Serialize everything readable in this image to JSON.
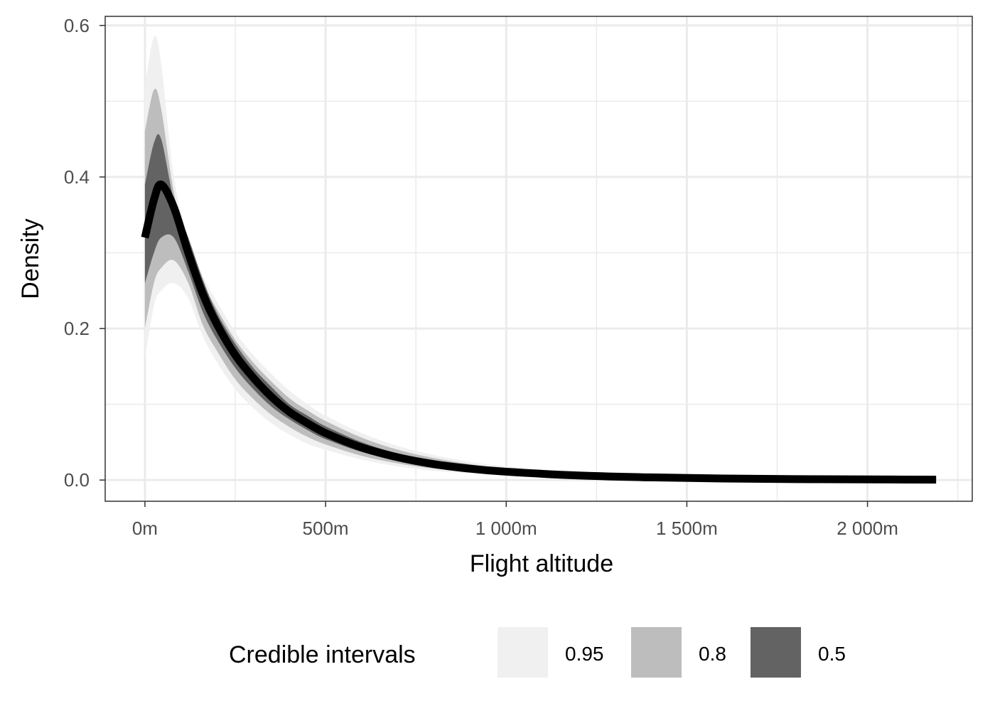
{
  "chart_data": {
    "type": "area",
    "xlabel": "Flight altitude",
    "ylabel": "Density",
    "xlim": [
      -110,
      2290
    ],
    "ylim": [
      -0.028,
      0.612
    ],
    "x_ticks": [
      0,
      500,
      1000,
      1500,
      2000
    ],
    "x_tick_labels": [
      "0m",
      "500m",
      "1 000m",
      "1 500m",
      "2 000m"
    ],
    "x_minor_ticks": [
      250,
      750,
      1250,
      1750,
      2250
    ],
    "y_ticks": [
      0.0,
      0.2,
      0.4,
      0.6
    ],
    "y_tick_labels": [
      "0.0",
      "0.2",
      "0.4",
      "0.6"
    ],
    "y_minor_ticks": [
      0.1,
      0.3,
      0.5
    ],
    "grid": true,
    "legend": {
      "title": "Credible intervals",
      "position": "bottom",
      "entries": [
        {
          "label": "0.95",
          "color": "#f0f0f0"
        },
        {
          "label": "0.8",
          "color": "#bdbdbd"
        },
        {
          "label": "0.5",
          "color": "#636363"
        }
      ]
    },
    "x": [
      0,
      25,
      45,
      80,
      120,
      160,
      200,
      250,
      300,
      350,
      400,
      450,
      500,
      600,
      700,
      800,
      900,
      1000,
      1200,
      1400,
      1600,
      1800,
      2000,
      2190
    ],
    "median": [
      0.32,
      0.37,
      0.39,
      0.36,
      0.3,
      0.246,
      0.205,
      0.165,
      0.135,
      0.11,
      0.09,
      0.075,
      0.062,
      0.043,
      0.03,
      0.021,
      0.015,
      0.011,
      0.006,
      0.0035,
      0.002,
      0.0012,
      0.0008,
      0.0005
    ],
    "intervals": [
      {
        "level": "0.95",
        "color": "#f0f0f0",
        "lower": [
          0.16,
          0.23,
          0.25,
          0.26,
          0.24,
          0.19,
          0.155,
          0.12,
          0.095,
          0.075,
          0.06,
          0.048,
          0.04,
          0.027,
          0.018,
          0.012,
          0.009,
          0.006,
          0.003,
          0.0015,
          0.0008,
          0.0004,
          0.0002,
          0.0001
        ],
        "upper": [
          0.52,
          0.585,
          0.55,
          0.4,
          0.32,
          0.27,
          0.235,
          0.195,
          0.165,
          0.14,
          0.118,
          0.1,
          0.085,
          0.062,
          0.045,
          0.033,
          0.024,
          0.018,
          0.01,
          0.0065,
          0.004,
          0.0025,
          0.0015,
          0.001
        ]
      },
      {
        "level": "0.8",
        "color": "#bdbdbd",
        "lower": [
          0.2,
          0.26,
          0.28,
          0.29,
          0.26,
          0.205,
          0.17,
          0.133,
          0.107,
          0.086,
          0.07,
          0.057,
          0.047,
          0.032,
          0.022,
          0.015,
          0.011,
          0.008,
          0.004,
          0.0022,
          0.0012,
          0.0006,
          0.0003,
          0.0002
        ],
        "upper": [
          0.46,
          0.515,
          0.49,
          0.38,
          0.31,
          0.26,
          0.225,
          0.185,
          0.155,
          0.13,
          0.108,
          0.092,
          0.078,
          0.056,
          0.04,
          0.029,
          0.021,
          0.015,
          0.0085,
          0.0055,
          0.0033,
          0.002,
          0.0012,
          0.0008
        ]
      },
      {
        "level": "0.5",
        "color": "#636363",
        "lower": [
          0.26,
          0.3,
          0.32,
          0.32,
          0.275,
          0.222,
          0.185,
          0.148,
          0.12,
          0.097,
          0.08,
          0.066,
          0.054,
          0.037,
          0.026,
          0.018,
          0.013,
          0.0095,
          0.005,
          0.0028,
          0.0016,
          0.0009,
          0.0005,
          0.0003
        ],
        "upper": [
          0.39,
          0.445,
          0.45,
          0.37,
          0.32,
          0.265,
          0.22,
          0.18,
          0.148,
          0.123,
          0.1,
          0.085,
          0.071,
          0.05,
          0.035,
          0.025,
          0.018,
          0.013,
          0.0072,
          0.0045,
          0.0026,
          0.0016,
          0.001,
          0.0007
        ]
      }
    ]
  }
}
